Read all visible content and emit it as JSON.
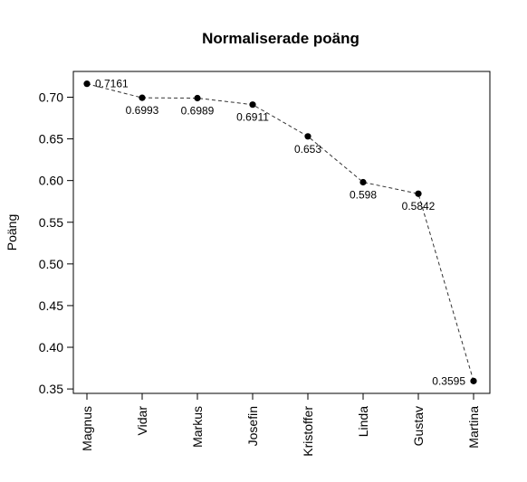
{
  "chart_data": {
    "type": "line",
    "title": "Normaliserade poäng",
    "xlabel": "",
    "ylabel": "Poäng",
    "categories": [
      "Magnus",
      "Vidar",
      "Markus",
      "Josefin",
      "Kristoffer",
      "Linda",
      "Gustav",
      "Martina"
    ],
    "values": [
      0.7161,
      0.6993,
      0.6989,
      0.6911,
      0.653,
      0.598,
      0.5842,
      0.3595
    ],
    "data_labels": [
      "0.7161",
      "0.6993",
      "0.6989",
      "0.6911",
      "0.653",
      "0.598",
      "0.5842",
      "0.3595"
    ],
    "yticks": [
      0.35,
      0.4,
      0.45,
      0.5,
      0.55,
      0.6,
      0.65,
      0.7
    ],
    "ytick_labels": [
      "0.35",
      "0.40",
      "0.45",
      "0.50",
      "0.55",
      "0.60",
      "0.65",
      "0.70"
    ],
    "ylim": [
      0.3447,
      0.7309
    ],
    "line_style": "dashed",
    "marker": "filled-circle",
    "grid": false,
    "colors": {
      "line": "#333333",
      "marker": "#000000",
      "frame": "#000000"
    }
  }
}
